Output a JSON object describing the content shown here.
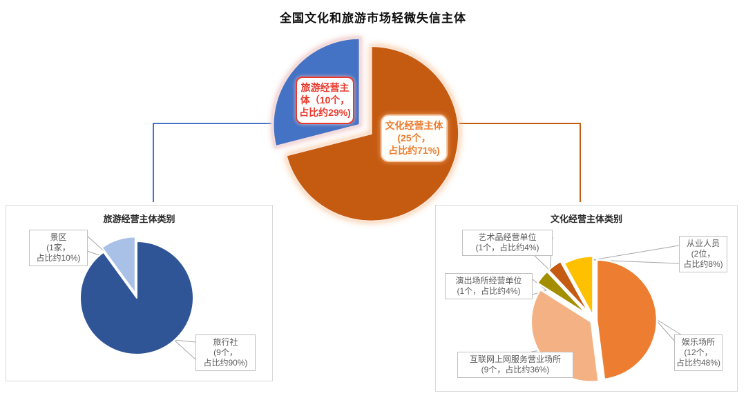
{
  "title": "全国文化和旅游市场轻微失信主体",
  "colors": {
    "tourism_accent": "#4472C4",
    "culture_accent": "#C55A11",
    "leader_gray": "#A6A6A6",
    "red_label": "#E8392C",
    "orange_label": "#ED7D31"
  },
  "panels": {
    "tourism": {
      "title": "旅游经营主体类别"
    },
    "culture": {
      "title": "文化经营主体类别"
    }
  },
  "chart_data": [
    {
      "type": "pie",
      "title": "全国文化和旅游市场轻微失信主体",
      "legend_position": "none",
      "slices": [
        {
          "key": "culture-operators",
          "label": "文化经营主体",
          "count": 25,
          "unit": "个",
          "percent_text": "约71%",
          "value": 71,
          "color": "#C55A11"
        },
        {
          "key": "tourism-operators",
          "label": "旅游经营主体",
          "count": 10,
          "unit": "个",
          "percent_text": "约29%",
          "value": 29,
          "color": "#4472C4"
        }
      ]
    },
    {
      "type": "pie",
      "title": "旅游经营主体类别",
      "legend_position": "none",
      "slices": [
        {
          "key": "travel-agencies",
          "label": "旅行社",
          "count": 9,
          "unit": "个",
          "percent_text": "约90%",
          "value": 90,
          "color": "#2F5597"
        },
        {
          "key": "scenic-areas",
          "label": "景区",
          "count": 1,
          "unit": "家",
          "percent_text": "约10%",
          "value": 10,
          "color": "#A9C1E6"
        }
      ]
    },
    {
      "type": "pie",
      "title": "文化经营主体类别",
      "legend_position": "none",
      "slices": [
        {
          "key": "entertainment-venues",
          "label": "娱乐场所",
          "count": 12,
          "unit": "个",
          "percent_text": "约48%",
          "value": 48,
          "color": "#ED7D31"
        },
        {
          "key": "internet-service-venues",
          "label": "互联网上网服务营业场所",
          "count": 9,
          "unit": "个",
          "percent_text": "约36%",
          "value": 36,
          "color": "#F4B183"
        },
        {
          "key": "performance-venues",
          "label": "演出场所经营单位",
          "count": 1,
          "unit": "个",
          "percent_text": "约4%",
          "value": 4,
          "color": "#A38E00"
        },
        {
          "key": "art-dealers",
          "label": "艺术品经营单位",
          "count": 1,
          "unit": "个",
          "percent_text": "约4%",
          "value": 4,
          "color": "#C55A11"
        },
        {
          "key": "practitioners",
          "label": "从业人员",
          "count": 2,
          "unit": "位",
          "percent_text": "约8%",
          "value": 8,
          "color": "#FFC000"
        }
      ]
    }
  ],
  "callouts": {
    "main_tourism": [
      "旅游经营主",
      "体（10个，",
      "占比约29%)"
    ],
    "main_culture": [
      "文化经营主体",
      "(25个，",
      "占比约71%)"
    ],
    "scenic": [
      "景区",
      "(1家，",
      "占比约10%)"
    ],
    "travel": [
      "旅行社",
      "(9个，",
      "占比约90%)"
    ],
    "art": [
      "艺术品经营单位",
      "(1个，占比约4%)"
    ],
    "performance": [
      "演出场所经营单位",
      "(1个，占比约4%)"
    ],
    "practitioners": [
      "从业人员",
      "(2位，",
      "占比约8%)"
    ],
    "entertainment": [
      "娱乐场所",
      "(12个，",
      "占比约48%)"
    ],
    "internet": [
      "互联网上网服务营业场所",
      "(9个，占比约36%)"
    ]
  }
}
